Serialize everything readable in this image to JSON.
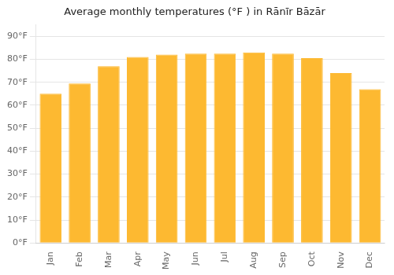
{
  "chart_data": {
    "type": "bar",
    "title": "Average monthly temperatures (°F ) in Rānīr Bāzār",
    "categories": [
      "Jan",
      "Feb",
      "Mar",
      "Apr",
      "May",
      "Jun",
      "Jul",
      "Aug",
      "Sep",
      "Oct",
      "Nov",
      "Dec"
    ],
    "values": [
      65,
      69.5,
      77,
      81,
      82,
      82.5,
      82.5,
      83,
      82.5,
      80.5,
      74,
      67
    ],
    "color": "#FDB931",
    "ylim": [
      0,
      95
    ],
    "yticks": [
      {
        "value": 0,
        "label": "0°F"
      },
      {
        "value": 10,
        "label": "10°F"
      },
      {
        "value": 20,
        "label": "20°F"
      },
      {
        "value": 30,
        "label": "30°F"
      },
      {
        "value": 40,
        "label": "40°F"
      },
      {
        "value": 50,
        "label": "50°F"
      },
      {
        "value": 60,
        "label": "60°F"
      },
      {
        "value": 70,
        "label": "70°F"
      },
      {
        "value": 80,
        "label": "80°F"
      },
      {
        "value": 90,
        "label": "90°F"
      }
    ],
    "grid": true
  }
}
